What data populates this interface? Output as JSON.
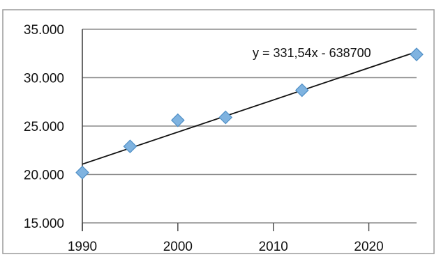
{
  "chart_data": {
    "type": "scatter",
    "x": [
      1990,
      1995,
      2000,
      2005,
      2013,
      2025
    ],
    "y": [
      20200,
      22900,
      25600,
      25900,
      28700,
      32400
    ],
    "xlim": [
      1990,
      2025
    ],
    "ylim": [
      15000,
      35000
    ],
    "x_ticks": [
      1990,
      2000,
      2010,
      2020
    ],
    "x_tick_labels": [
      "1990",
      "2000",
      "2010",
      "2020"
    ],
    "y_ticks": [
      15000,
      20000,
      25000,
      30000,
      35000
    ],
    "y_tick_labels": [
      "15.000",
      "20.000",
      "25.000",
      "30.000",
      "35.000"
    ],
    "grid": {
      "horizontal": true,
      "vertical": false
    },
    "trendline": {
      "type": "linear",
      "slope": 331.54,
      "intercept": -638700,
      "label": "y = 331,54x - 638700"
    },
    "colors": {
      "marker": "#7fb3e0",
      "marker_edge": "#4f8fc6",
      "trendline": "#111111",
      "grid": "#8a8a8a",
      "axis": "#444444"
    },
    "title": "",
    "xlabel": "",
    "ylabel": ""
  }
}
